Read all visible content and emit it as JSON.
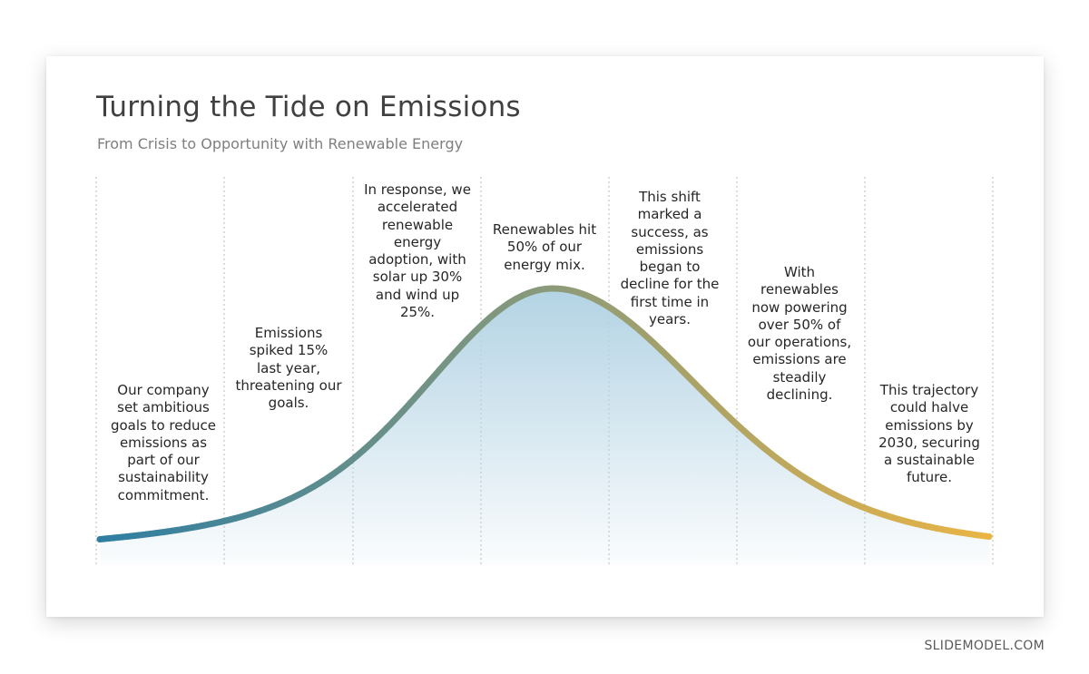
{
  "slide": {
    "title": "Turning the Tide on Emissions",
    "subtitle": "From Crisis to Opportunity with Renewable Energy"
  },
  "curve": {
    "gradient_start_color": "#2e7ea2",
    "gradient_mid_color": "#8a9a7a",
    "gradient_end_color": "#e9b444",
    "fill_color": "#b3d3e4"
  },
  "stages": [
    {
      "text": "Our company set ambitious goals to reduce emissions as part of our sustainability commitment."
    },
    {
      "text": "Emissions spiked 15% last year, threatening our goals."
    },
    {
      "text": "In response, we accelerated renewable energy adoption, with solar up 30% and wind up 25%."
    },
    {
      "text": "Renewables hit 50% of our energy mix."
    },
    {
      "text": "This shift marked a success, as emissions began to decline for the first time in years."
    },
    {
      "text": "With renewables now powering over 50% of our operations, emissions are steadily declining."
    },
    {
      "text": "This trajectory could halve emissions by 2030, securing a sustainable future."
    }
  ],
  "watermark": "SLIDEMODEL.COM"
}
